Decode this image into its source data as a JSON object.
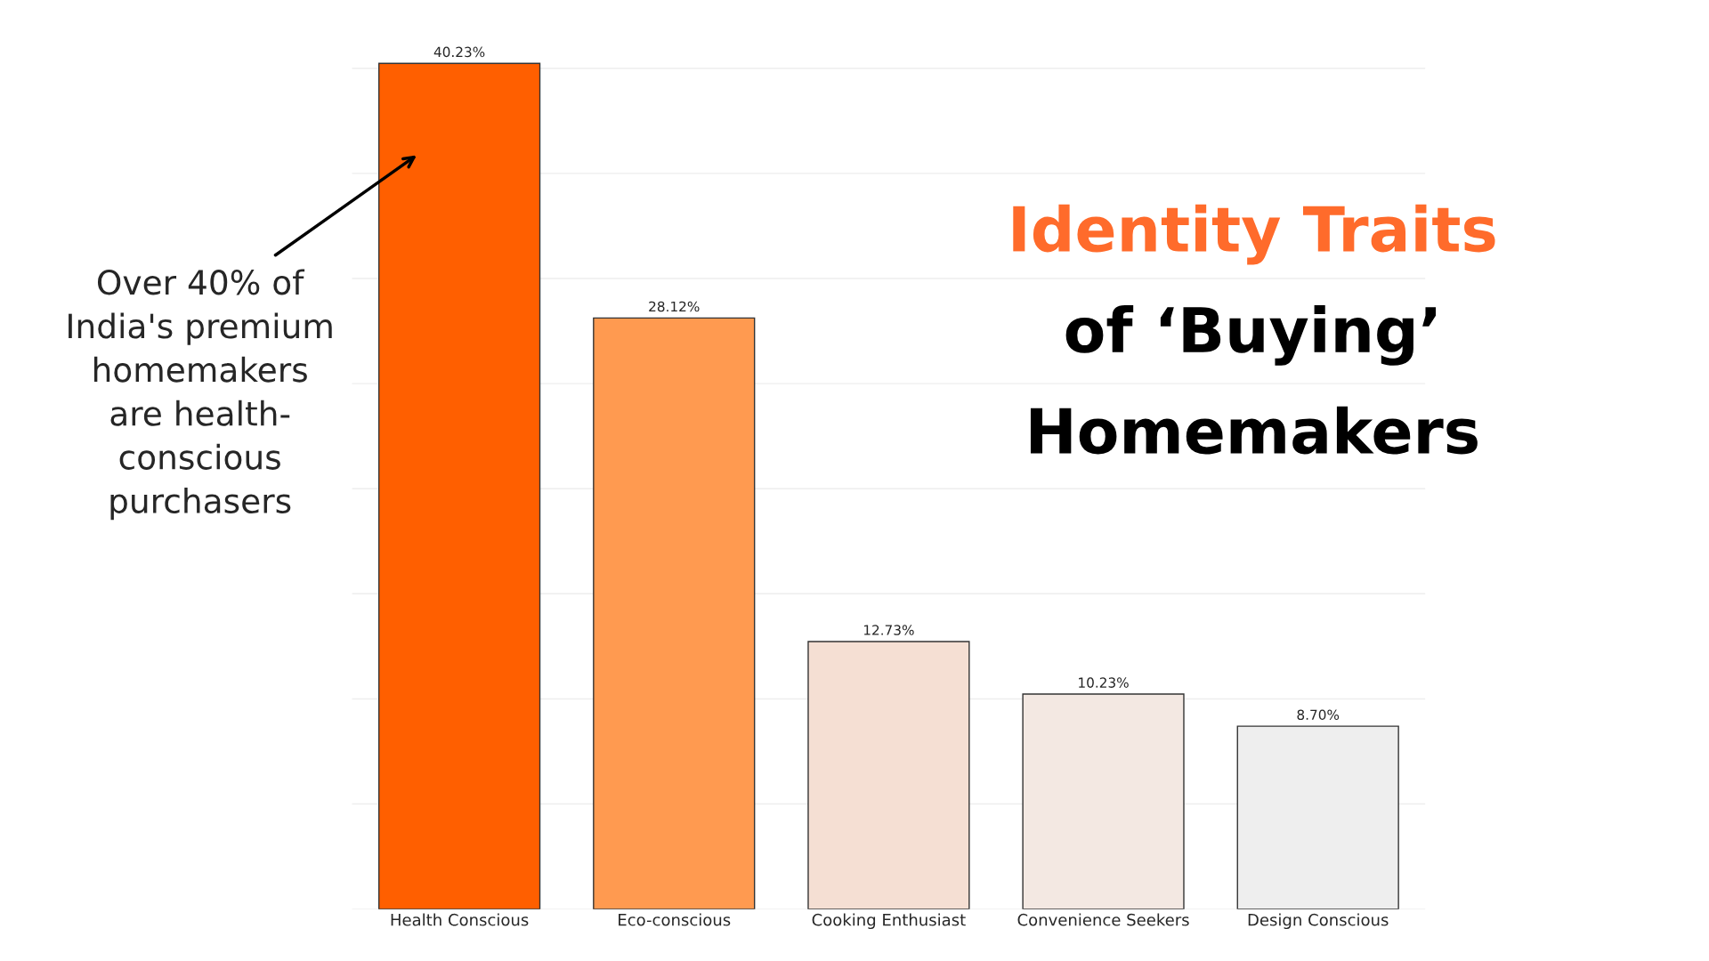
{
  "chart_data": {
    "type": "bar",
    "title": "Identity Traits\nof ‘Buying’\nHomemakers",
    "categories": [
      "Health Conscious",
      "Eco-conscious",
      "Cooking Enthusiast",
      "Convenience Seekers",
      "Design Conscious"
    ],
    "values": [
      40.23,
      28.12,
      12.73,
      10.23,
      8.7
    ],
    "value_labels": [
      "40.23%",
      "28.12%",
      "12.73%",
      "10.23%",
      "8.70%"
    ],
    "colors": [
      "#ff5f00",
      "#ff9a50",
      "#f5dfd3",
      "#f3e8e2",
      "#eeeeee"
    ],
    "yticks": [
      {
        "value": 0,
        "label": null
      },
      {
        "value": 5,
        "label": null
      },
      {
        "value": 10,
        "label": null
      },
      {
        "value": 15,
        "label": null
      },
      {
        "value": 20,
        "label": null
      },
      {
        "value": 25,
        "label": null
      },
      {
        "value": 30,
        "label": null
      },
      {
        "value": 35,
        "label": null
      },
      {
        "value": 40,
        "label": null
      }
    ],
    "grid": "y",
    "annotations": [
      "Over 40% of\nIndia's premium\nhomemakers\nare health-\nconscious\npurchasers"
    ]
  }
}
